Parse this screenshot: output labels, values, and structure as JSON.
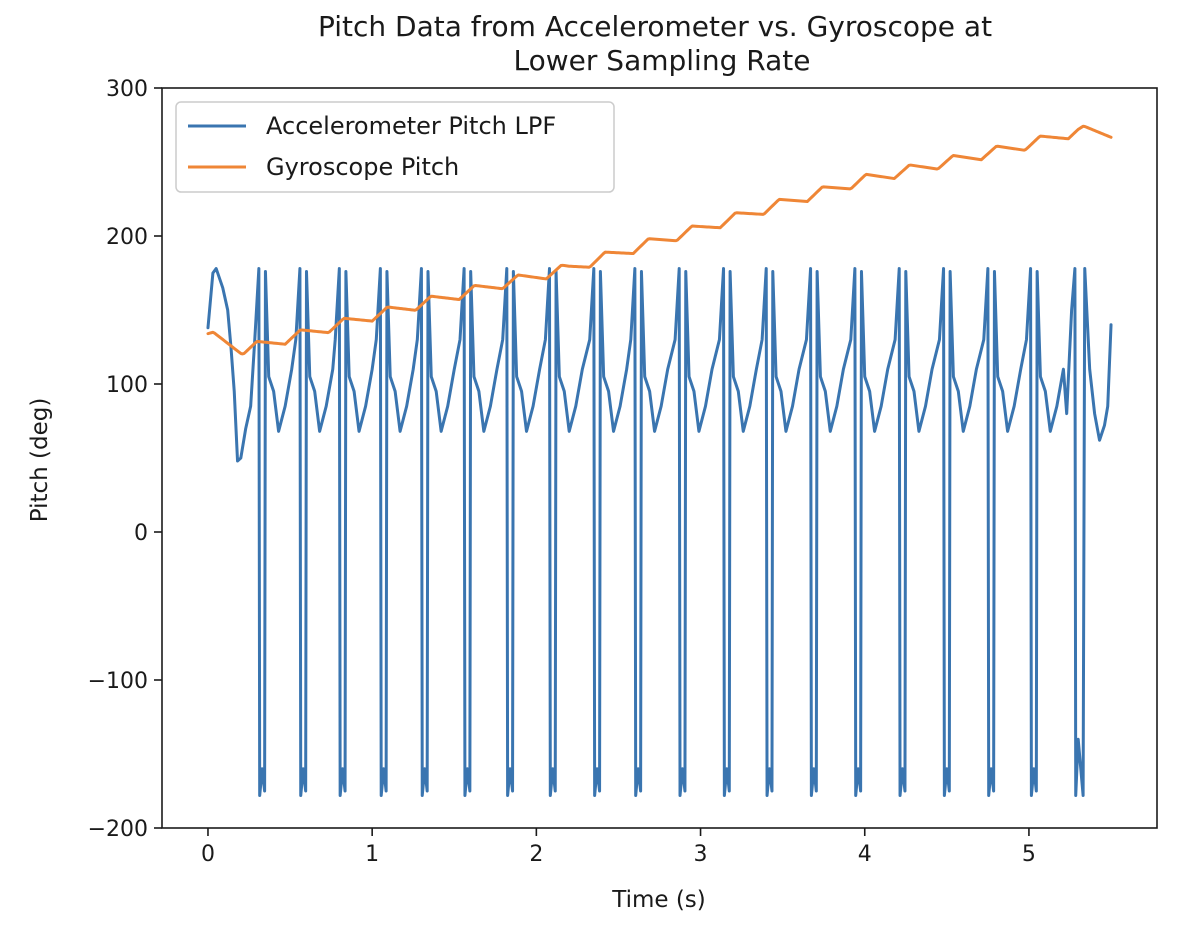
{
  "chart_data": {
    "type": "line",
    "title": [
      "Pitch Data from Accelerometer vs. Gyroscope at",
      "Lower Sampling Rate"
    ],
    "xlabel": "Time (s)",
    "ylabel": "Pitch (deg)",
    "xlim": [
      -0.28,
      5.78
    ],
    "ylim": [
      -200,
      300
    ],
    "xticks": [
      0,
      1,
      2,
      3,
      4,
      5
    ],
    "xtick_labels": [
      "0",
      "1",
      "2",
      "3",
      "4",
      "5"
    ],
    "yticks": [
      300,
      200,
      100,
      0,
      -100,
      -200
    ],
    "ytick_labels": [
      "300",
      "200",
      "100",
      "0",
      "−100",
      "−200"
    ],
    "grid": false,
    "legend_position": "upper-left",
    "accel_pattern": {
      "start": [
        [
          0.0,
          138
        ],
        [
          0.03,
          175
        ],
        [
          0.05,
          178
        ],
        [
          0.09,
          165
        ],
        [
          0.12,
          150
        ],
        [
          0.14,
          125
        ],
        [
          0.16,
          95
        ],
        [
          0.18,
          48
        ],
        [
          0.2,
          50
        ],
        [
          0.23,
          70
        ],
        [
          0.26,
          85
        ]
      ],
      "cycle_starts": [
        0.26,
        0.51,
        0.75,
        1.0,
        1.25,
        1.51,
        1.77,
        2.03,
        2.3,
        2.55,
        2.82,
        3.09,
        3.35,
        3.62,
        3.89,
        4.16,
        4.43,
        4.7,
        4.96
      ],
      "cycle_shape": [
        [
          0.0,
          85
        ],
        [
          0.025,
          130
        ],
        [
          0.05,
          178
        ],
        [
          0.055,
          -178
        ],
        [
          0.07,
          -160
        ],
        [
          0.085,
          -175
        ],
        [
          0.09,
          176
        ],
        [
          0.11,
          105
        ],
        [
          0.14,
          95
        ],
        [
          0.17,
          68
        ],
        [
          0.21,
          85
        ],
        [
          0.25,
          110
        ]
      ],
      "end": [
        [
          5.23,
          80
        ],
        [
          5.26,
          150
        ],
        [
          5.28,
          178
        ],
        [
          5.285,
          -178
        ],
        [
          5.3,
          -140
        ],
        [
          5.33,
          -178
        ],
        [
          5.34,
          178
        ],
        [
          5.37,
          110
        ],
        [
          5.4,
          80
        ],
        [
          5.43,
          62
        ],
        [
          5.46,
          72
        ],
        [
          5.48,
          85
        ],
        [
          5.5,
          140
        ]
      ]
    },
    "gyro_pattern": {
      "trend_points": [
        [
          0.0,
          133
        ],
        [
          0.22,
          123
        ],
        [
          1.0,
          146
        ],
        [
          1.8,
          168
        ],
        [
          2.2,
          178
        ],
        [
          2.6,
          192
        ],
        [
          3.0,
          205
        ],
        [
          3.5,
          222
        ],
        [
          4.0,
          238
        ],
        [
          4.5,
          250
        ],
        [
          5.0,
          262
        ],
        [
          5.3,
          271
        ],
        [
          5.5,
          270
        ]
      ],
      "oscillation_period": 0.265,
      "oscillation_amplitude": 7
    },
    "series": [
      {
        "name": "Accelerometer Pitch LPF",
        "color": "#3a75b0"
      },
      {
        "name": "Gyroscope Pitch",
        "color": "#ef8636"
      }
    ]
  }
}
